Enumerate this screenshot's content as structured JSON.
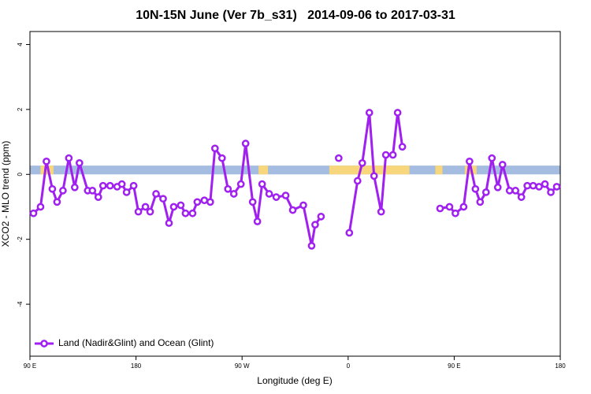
{
  "chart_data": {
    "type": "line",
    "title": "10N-15N June (Ver 7b_s31)   2014-09-06 to 2017-03-31",
    "xlabel": "Longitude (deg E)",
    "ylabel": "XCO2 - MLO trend (ppm)",
    "xlim": [
      90,
      540
    ],
    "ylim": [
      -5.6,
      4.4
    ],
    "xticks": [
      {
        "value": 90,
        "label": "90 E"
      },
      {
        "value": 180,
        "label": "180"
      },
      {
        "value": 270,
        "label": "90 W"
      },
      {
        "value": 360,
        "label": "0"
      },
      {
        "value": 450,
        "label": "90 E"
      },
      {
        "value": 540,
        "label": "180"
      }
    ],
    "yticks": [
      -4,
      -2,
      0,
      2,
      4
    ],
    "legend_position": "bottom-left",
    "mask_band": {
      "ylim": [
        0,
        0.27
      ],
      "ocean_color": "#a4bcdf",
      "land_color": "#f8d77c",
      "land": [
        [
          99,
          110
        ],
        [
          284,
          292
        ],
        [
          344,
          412
        ],
        [
          434,
          440
        ],
        [
          459,
          469
        ]
      ]
    },
    "series": [
      {
        "name": "Land (Nadir&Glint) and Ocean (Glint)",
        "color": "#a020f0",
        "x": [
          93,
          99,
          104,
          109,
          113,
          118,
          123,
          128,
          132,
          139,
          143,
          148,
          152,
          158,
          164,
          168,
          172,
          178,
          182,
          188,
          192,
          197,
          203,
          208,
          212,
          218,
          222,
          228,
          232,
          238,
          243,
          247,
          253,
          258,
          263,
          269,
          273,
          279,
          283,
          287,
          293,
          299,
          307,
          313,
          322,
          329,
          332,
          337,
          345,
          352,
          356,
          361,
          368,
          372,
          378,
          382,
          388,
          392,
          398,
          402,
          406,
          420,
          438,
          446,
          451,
          458,
          463,
          468,
          472,
          477,
          482,
          487,
          491,
          497,
          502,
          507,
          512,
          517,
          522,
          527,
          532,
          537
        ],
        "values": [
          -1.2,
          -1.0,
          0.4,
          -0.45,
          -0.85,
          -0.5,
          0.5,
          -0.4,
          0.35,
          -0.5,
          -0.5,
          -0.7,
          -0.35,
          -0.35,
          -0.38,
          -0.3,
          -0.55,
          -0.35,
          -1.15,
          -1.0,
          -1.15,
          -0.6,
          -0.75,
          -1.5,
          -1.0,
          -0.95,
          -1.2,
          -1.2,
          -0.85,
          -0.8,
          -0.85,
          0.8,
          0.5,
          -0.45,
          -0.6,
          -0.3,
          0.95,
          -0.85,
          -1.45,
          -0.3,
          -0.6,
          -0.7,
          -0.65,
          -1.1,
          -0.95,
          -2.2,
          -1.55,
          -1.3,
          null,
          0.5,
          null,
          -1.8,
          -0.2,
          0.35,
          1.9,
          -0.05,
          -1.15,
          0.6,
          0.6,
          1.9,
          0.85,
          null,
          -1.05,
          -1.0,
          -1.2,
          -1.0,
          0.4,
          -0.45,
          -0.85,
          -0.55,
          0.5,
          -0.4,
          0.3,
          -0.5,
          -0.5,
          -0.7,
          -0.35,
          -0.35,
          -0.38,
          -0.3,
          -0.55,
          -0.38
        ]
      }
    ]
  }
}
